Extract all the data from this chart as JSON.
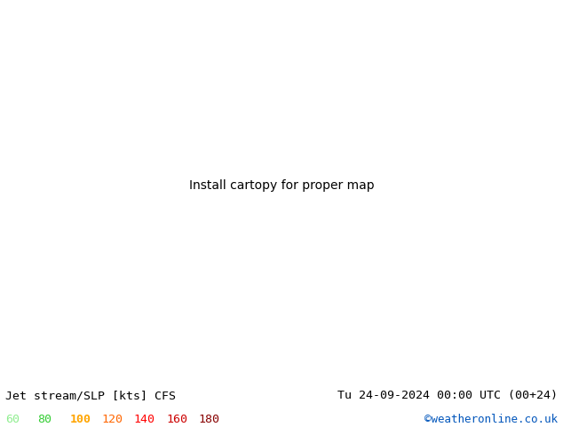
{
  "title_left": "Jet stream/SLP [kts] CFS",
  "title_right": "Tu 24-09-2024 00:00 UTC (00+24)",
  "credit": "©weatheronline.co.uk",
  "legend_values": [
    60,
    80,
    100,
    120,
    140,
    160,
    180
  ],
  "legend_colors": [
    "#90ee90",
    "#32cd32",
    "#ffa500",
    "#ff6600",
    "#ff0000",
    "#cc0000",
    "#880000"
  ],
  "bg_color": "#ffffff",
  "ocean_color": "#c8d4e8",
  "land_color": "#c8d8b0",
  "contour_color_blue": "#0000bb",
  "contour_color_red": "#cc0000",
  "fig_width": 6.34,
  "fig_height": 4.9,
  "dpi": 100
}
